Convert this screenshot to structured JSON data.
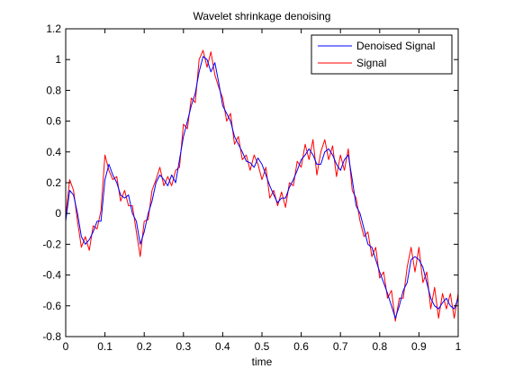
{
  "chart_data": {
    "type": "line",
    "title": "Wavelet shrinkage denoising",
    "xlabel": "time",
    "ylabel": "",
    "xlim": [
      0,
      1
    ],
    "ylim": [
      -0.8,
      1.2
    ],
    "xticks": [
      0,
      0.1,
      0.2,
      0.3,
      0.4,
      0.5,
      0.6,
      0.7,
      0.8,
      0.9,
      1
    ],
    "xtick_labels": [
      "0",
      "0.1",
      "0.2",
      "0.3",
      "0.4",
      "0.5",
      "0.6",
      "0.7",
      "0.8",
      "0.9",
      "1"
    ],
    "yticks": [
      -0.8,
      -0.6,
      -0.4,
      -0.2,
      0,
      0.2,
      0.4,
      0.6,
      0.8,
      1,
      1.2
    ],
    "ytick_labels": [
      "-0.8",
      "-0.6",
      "-0.4",
      "-0.2",
      "0",
      "0.2",
      "0.4",
      "0.6",
      "0.8",
      "1",
      "1.2"
    ],
    "grid": false,
    "legend_position": "top-right",
    "series": [
      {
        "name": "Denoised Signal",
        "color": "#0000ff",
        "x": [
          0,
          0.01,
          0.02,
          0.03,
          0.04,
          0.05,
          0.06,
          0.07,
          0.08,
          0.09,
          0.1,
          0.11,
          0.12,
          0.13,
          0.14,
          0.15,
          0.16,
          0.17,
          0.18,
          0.19,
          0.2,
          0.21,
          0.22,
          0.23,
          0.24,
          0.25,
          0.26,
          0.27,
          0.28,
          0.29,
          0.3,
          0.31,
          0.32,
          0.33,
          0.34,
          0.35,
          0.36,
          0.37,
          0.38,
          0.39,
          0.4,
          0.41,
          0.42,
          0.43,
          0.44,
          0.45,
          0.46,
          0.47,
          0.48,
          0.49,
          0.5,
          0.51,
          0.52,
          0.53,
          0.54,
          0.55,
          0.56,
          0.57,
          0.58,
          0.59,
          0.6,
          0.61,
          0.62,
          0.63,
          0.64,
          0.65,
          0.66,
          0.67,
          0.68,
          0.69,
          0.7,
          0.71,
          0.72,
          0.73,
          0.74,
          0.75,
          0.76,
          0.77,
          0.78,
          0.79,
          0.8,
          0.81,
          0.82,
          0.83,
          0.84,
          0.85,
          0.86,
          0.87,
          0.88,
          0.89,
          0.9,
          0.91,
          0.92,
          0.93,
          0.94,
          0.95,
          0.96,
          0.97,
          0.98,
          0.99,
          1
        ],
        "y": [
          -0.05,
          0.15,
          0.12,
          0.0,
          -0.15,
          -0.2,
          -0.17,
          -0.12,
          -0.05,
          -0.05,
          0.22,
          0.32,
          0.25,
          0.2,
          0.12,
          0.1,
          0.12,
          0.0,
          -0.05,
          -0.2,
          -0.12,
          0.0,
          0.08,
          0.2,
          0.25,
          0.22,
          0.18,
          0.25,
          0.2,
          0.35,
          0.5,
          0.6,
          0.7,
          0.78,
          0.92,
          1.02,
          1.0,
          0.92,
          0.98,
          0.85,
          0.7,
          0.65,
          0.6,
          0.5,
          0.45,
          0.4,
          0.34,
          0.33,
          0.3,
          0.36,
          0.32,
          0.25,
          0.18,
          0.12,
          0.07,
          0.1,
          0.1,
          0.17,
          0.22,
          0.28,
          0.35,
          0.38,
          0.42,
          0.38,
          0.32,
          0.32,
          0.4,
          0.42,
          0.38,
          0.32,
          0.28,
          0.35,
          0.38,
          0.22,
          0.05,
          0.0,
          -0.1,
          -0.2,
          -0.22,
          -0.3,
          -0.38,
          -0.45,
          -0.52,
          -0.6,
          -0.68,
          -0.6,
          -0.5,
          -0.45,
          -0.3,
          -0.28,
          -0.3,
          -0.35,
          -0.45,
          -0.55,
          -0.6,
          -0.62,
          -0.58,
          -0.55,
          -0.6,
          -0.62,
          -0.55
        ]
      },
      {
        "name": "Signal",
        "color": "#ff0000",
        "x": [
          0,
          0.01,
          0.02,
          0.03,
          0.04,
          0.05,
          0.06,
          0.07,
          0.08,
          0.09,
          0.1,
          0.11,
          0.12,
          0.13,
          0.14,
          0.15,
          0.16,
          0.17,
          0.18,
          0.19,
          0.2,
          0.21,
          0.22,
          0.23,
          0.24,
          0.25,
          0.26,
          0.27,
          0.28,
          0.29,
          0.3,
          0.31,
          0.32,
          0.33,
          0.34,
          0.35,
          0.36,
          0.37,
          0.38,
          0.39,
          0.4,
          0.41,
          0.42,
          0.43,
          0.44,
          0.45,
          0.46,
          0.47,
          0.48,
          0.49,
          0.5,
          0.51,
          0.52,
          0.53,
          0.54,
          0.55,
          0.56,
          0.57,
          0.58,
          0.59,
          0.6,
          0.61,
          0.62,
          0.63,
          0.64,
          0.65,
          0.66,
          0.67,
          0.68,
          0.69,
          0.7,
          0.71,
          0.72,
          0.73,
          0.74,
          0.75,
          0.76,
          0.77,
          0.78,
          0.79,
          0.8,
          0.81,
          0.82,
          0.83,
          0.84,
          0.85,
          0.86,
          0.87,
          0.88,
          0.89,
          0.9,
          0.91,
          0.92,
          0.93,
          0.94,
          0.95,
          0.96,
          0.97,
          0.98,
          0.99,
          1
        ],
        "y": [
          -0.02,
          0.22,
          0.15,
          -0.05,
          -0.22,
          -0.15,
          -0.24,
          -0.08,
          -0.1,
          0.02,
          0.38,
          0.28,
          0.22,
          0.24,
          0.08,
          0.15,
          0.05,
          0.05,
          -0.12,
          -0.28,
          -0.05,
          -0.04,
          0.15,
          0.22,
          0.3,
          0.18,
          0.24,
          0.18,
          0.28,
          0.3,
          0.58,
          0.55,
          0.75,
          0.72,
          1.0,
          1.06,
          0.95,
          1.05,
          0.9,
          0.82,
          0.75,
          0.6,
          0.65,
          0.45,
          0.5,
          0.35,
          0.38,
          0.28,
          0.38,
          0.32,
          0.22,
          0.3,
          0.1,
          0.15,
          0.05,
          0.14,
          0.04,
          0.2,
          0.18,
          0.34,
          0.3,
          0.45,
          0.35,
          0.48,
          0.25,
          0.4,
          0.48,
          0.35,
          0.44,
          0.24,
          0.38,
          0.28,
          0.42,
          0.15,
          0.1,
          -0.05,
          -0.15,
          -0.12,
          -0.28,
          -0.22,
          -0.42,
          -0.38,
          -0.55,
          -0.5,
          -0.7,
          -0.55,
          -0.55,
          -0.35,
          -0.22,
          -0.38,
          -0.22,
          -0.45,
          -0.38,
          -0.62,
          -0.48,
          -0.68,
          -0.52,
          -0.62,
          -0.52,
          -0.68,
          -0.52
        ]
      }
    ]
  }
}
